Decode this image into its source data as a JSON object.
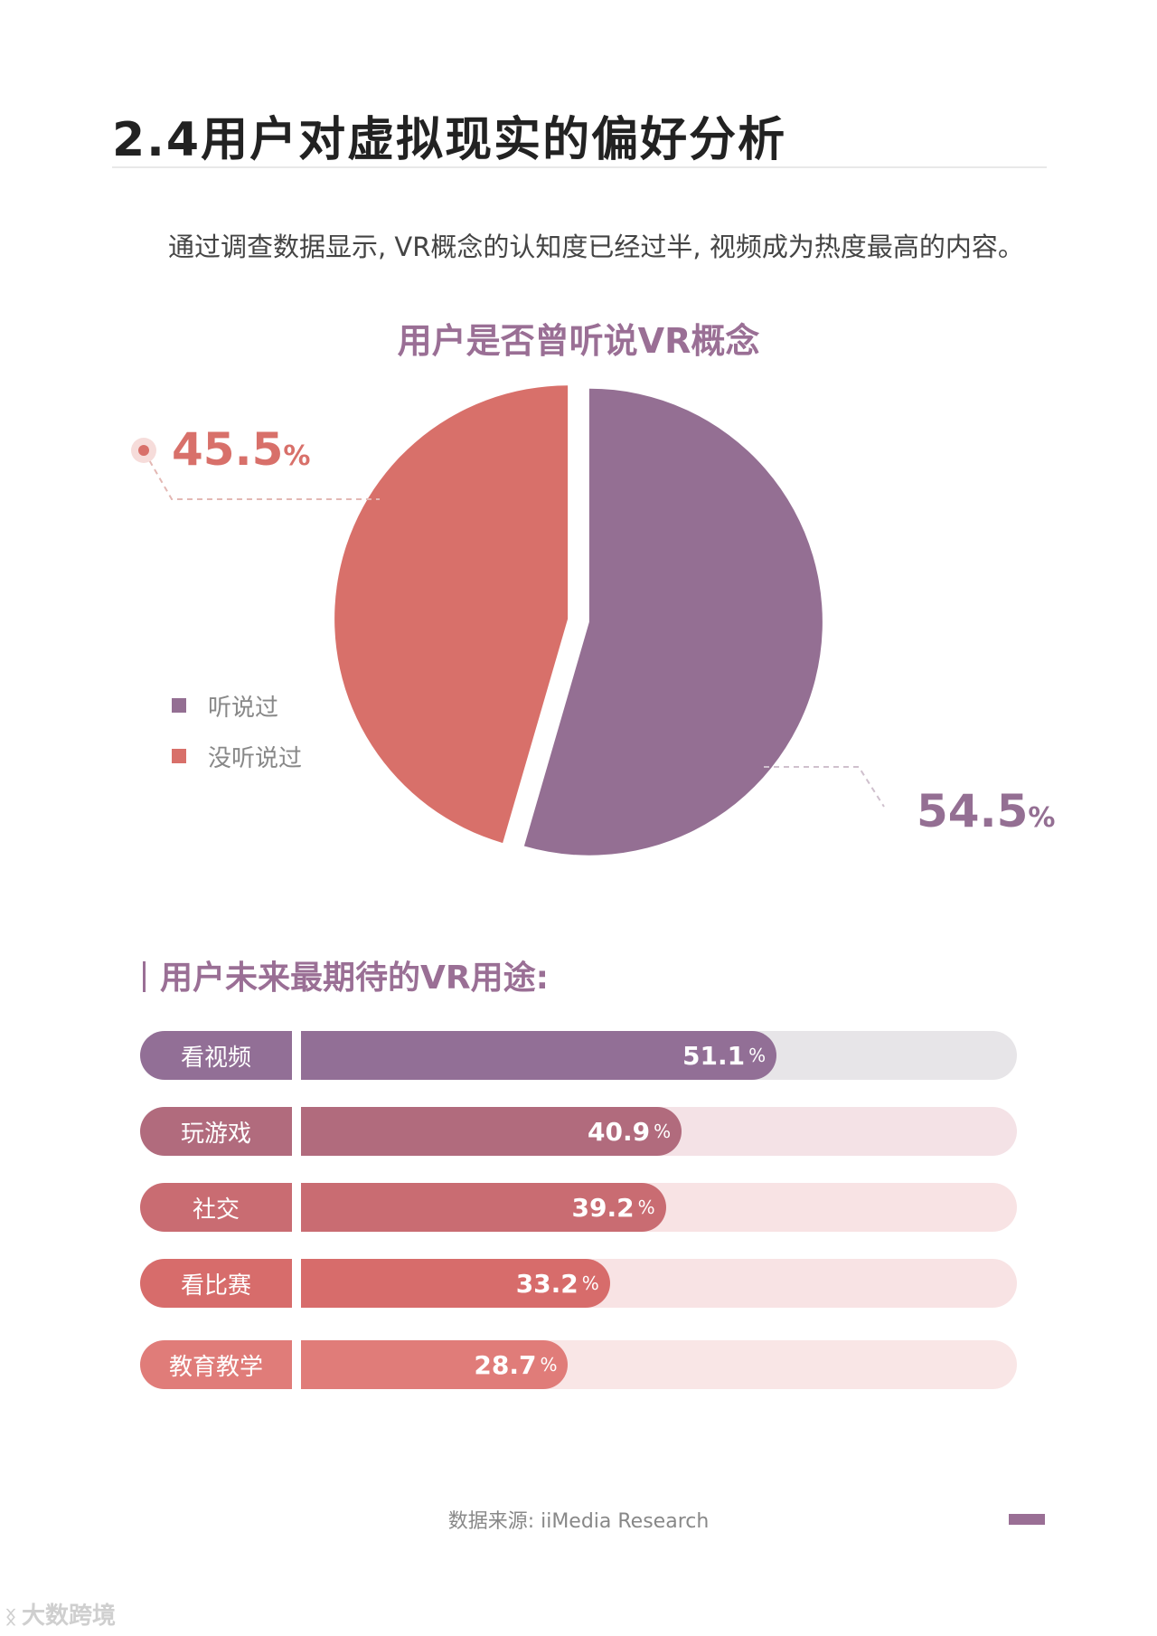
{
  "page": {
    "title": "2.4用户对虚拟现实的偏好分析",
    "summary": "通过调查数据显示, VR概念的认知度已经过半, 视频成为热度最高的内容。",
    "source": "数据来源: iiMedia Research",
    "watermark": "大数跨境",
    "watermark_logo": "ᛝ"
  },
  "colors": {
    "purple": "#946f93",
    "red": "#d8706a",
    "title_purple": "#9a6f95"
  },
  "chart_data": [
    {
      "type": "pie",
      "title": "用户是否曾听说VR概念",
      "series": [
        {
          "name": "听说过",
          "value": 54.5,
          "display": "54.5",
          "color": "#946f93"
        },
        {
          "name": "没听说过",
          "value": 45.5,
          "display": "45.5",
          "color": "#d8706a"
        }
      ],
      "unit": "%",
      "legend_position": "left"
    },
    {
      "type": "bar",
      "title": "用户未来最期待的VR用途:",
      "categories": [
        "看视频",
        "玩游戏",
        "社交",
        "看比赛",
        "教育教学"
      ],
      "values": [
        51.1,
        40.9,
        39.2,
        33.2,
        28.7
      ],
      "display": [
        "51.1",
        "40.9",
        "39.2",
        "33.2",
        "28.7"
      ],
      "unit": "%",
      "xlim": [
        0,
        100
      ],
      "colors": [
        "#926f96",
        "#b16b7d",
        "#c96c72",
        "#d76c6b",
        "#e07c79"
      ],
      "track_colors": [
        "#e7e5e8",
        "#f4e2e6",
        "#f8e3e4",
        "#f8e3e4",
        "#f9e6e6"
      ]
    }
  ]
}
